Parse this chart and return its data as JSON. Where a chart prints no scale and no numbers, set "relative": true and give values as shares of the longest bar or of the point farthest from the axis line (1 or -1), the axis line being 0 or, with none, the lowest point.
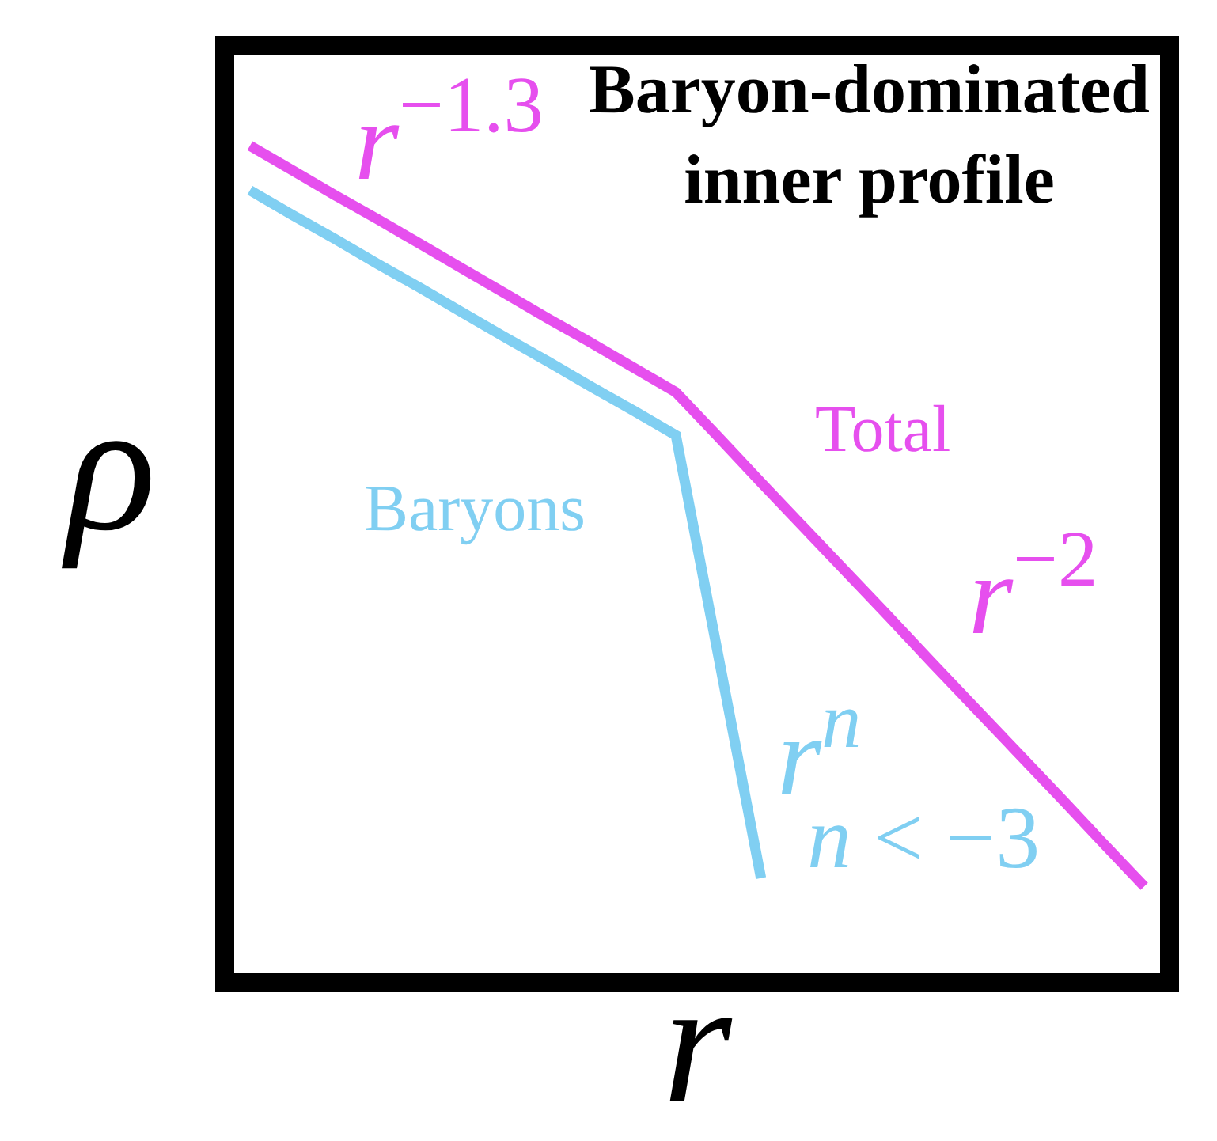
{
  "chart_data": {
    "type": "line",
    "relative": true,
    "xlabel": "r",
    "ylabel": "ρ",
    "categories": [
      null,
      null,
      null,
      null,
      null,
      null,
      null,
      null,
      null,
      null,
      null,
      null,
      null,
      null,
      null,
      null,
      null,
      null,
      null,
      null,
      null,
      null
    ],
    "series": [
      {
        "name": "Total",
        "color": "#e64fee",
        "values": [
          1.0,
          0.97,
          0.94,
          0.911,
          0.881,
          0.851,
          0.821,
          0.791,
          0.762,
          0.732,
          0.702,
          0.648,
          0.593,
          0.539,
          0.485,
          0.431,
          0.376,
          0.322,
          0.268,
          0.214,
          0.159,
          0.105
        ]
      },
      {
        "name": "Baryons",
        "color": "#80cff2",
        "values": [
          0.946,
          0.916,
          0.887,
          0.857,
          0.828,
          0.798,
          0.768,
          0.739,
          0.709,
          0.68,
          0.65,
          0.383,
          0.115,
          null,
          null,
          null,
          null,
          null,
          null,
          null,
          null,
          null
        ]
      }
    ],
    "annotations": [
      "Baryon-dominated\ninner profile",
      "r$^{−1.3}$",
      "r$^{−2}$",
      "r$^{n}$",
      "n < −3"
    ],
    "legend": false,
    "marker": "none",
    "line_style": "solid"
  }
}
